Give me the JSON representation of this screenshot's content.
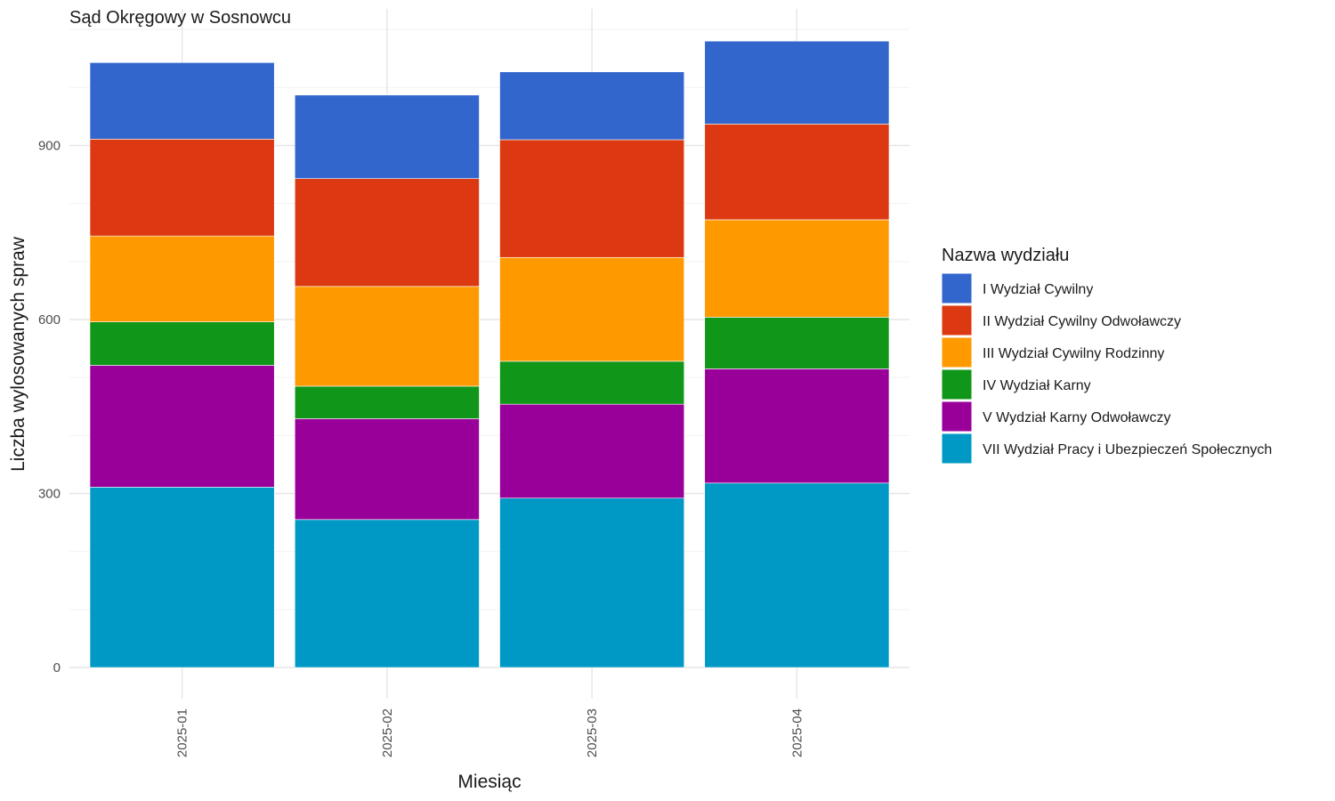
{
  "chart_data": {
    "type": "bar",
    "stacked": true,
    "title": "Sąd Okręgowy w Sosnowcu",
    "xlabel": "Miesiąc",
    "ylabel": "Liczba wylosowanych spraw",
    "ylim": [
      0,
      1100
    ],
    "yticks": [
      0,
      300,
      600,
      900
    ],
    "grid": true,
    "legend_placement": "right",
    "legend_title": "Nazwa wydziału",
    "categories": [
      "2025-01",
      "2025-02",
      "2025-03",
      "2025-04"
    ],
    "series": [
      {
        "name": "VII Wydział Pracy i Ubezpieczeń Społecznych",
        "color": "#0099C6",
        "values": [
          311,
          255,
          292,
          318
        ]
      },
      {
        "name": "V Wydział Karny Odwoławczy",
        "color": "#990099",
        "values": [
          210,
          174,
          162,
          197
        ]
      },
      {
        "name": "IV Wydział Karny",
        "color": "#109618",
        "values": [
          75,
          56,
          74,
          89
        ]
      },
      {
        "name": "III Wydział Cywilny Rodzinny",
        "color": "#FF9900",
        "values": [
          148,
          172,
          179,
          168
        ]
      },
      {
        "name": "II Wydział Cywilny Odwoławczy",
        "color": "#DC3912",
        "values": [
          167,
          186,
          203,
          165
        ]
      },
      {
        "name": "I Wydział Cywilny",
        "color": "#3366CC",
        "values": [
          132,
          144,
          117,
          143
        ]
      }
    ],
    "legend_order": [
      "I Wydział Cywilny",
      "II Wydział Cywilny Odwoławczy",
      "III Wydział Cywilny Rodzinny",
      "IV Wydział Karny",
      "V Wydział Karny Odwoławczy",
      "VII Wydział Pracy i Ubezpieczeń Społecznych"
    ]
  }
}
